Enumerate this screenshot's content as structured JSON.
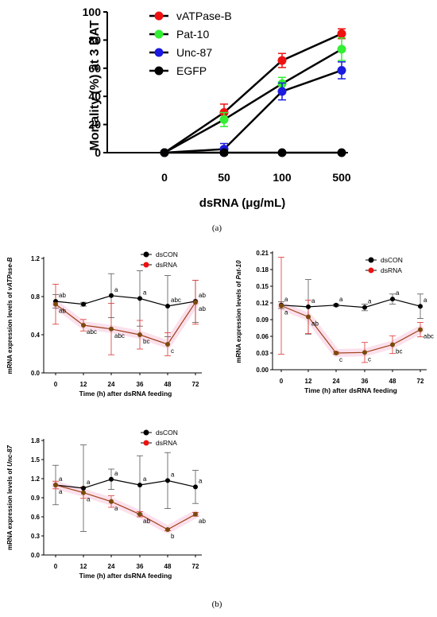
{
  "captions": {
    "a": "(a)",
    "b": "(b)"
  },
  "chart_data": [
    {
      "id": "mortality",
      "type": "line",
      "xlabel": "dsRNA (μg/mL)",
      "ylabel": "Mortality (%) at 3 DAT",
      "x": [
        "0",
        "50",
        "100",
        "500"
      ],
      "ylim": [
        0,
        100
      ],
      "yticks": [
        0,
        20,
        40,
        60,
        80,
        100
      ],
      "legend_position": "top-right",
      "series": [
        {
          "name": "vATPase-B",
          "color": "#ee1111",
          "values": [
            0,
            28.5,
            65.5,
            84.5
          ],
          "err": [
            0,
            6,
            5,
            3.5
          ]
        },
        {
          "name": "Pat-10",
          "color": "#33ee33",
          "values": [
            0,
            23.5,
            49,
            73.5
          ],
          "err": [
            0,
            5,
            4.5,
            8
          ]
        },
        {
          "name": "Unc-87",
          "color": "#1a1ae0",
          "values": [
            0,
            2.5,
            43.5,
            58.5
          ],
          "err": [
            0,
            4,
            6,
            6
          ]
        },
        {
          "name": "EGFP",
          "color": "#000000",
          "values": [
            0,
            0,
            0,
            0
          ],
          "err": [
            0,
            0,
            0,
            0
          ]
        }
      ]
    },
    {
      "id": "vatpase",
      "type": "line",
      "xlabel": "Time (h) after dsRNA feeding",
      "ylabel_prefix": "mRNA expression levels of ",
      "ylabel_gene": "vATPase-B",
      "x": [
        "0",
        "12",
        "24",
        "36",
        "48",
        "72"
      ],
      "ylim": [
        0,
        1.2
      ],
      "yticks": [
        "0.0",
        "0.4",
        "0.8",
        "1.2"
      ],
      "legend_position": "top-right",
      "series": [
        {
          "name": "dsCON",
          "color": "#000000",
          "values": [
            0.75,
            0.72,
            0.81,
            0.78,
            0.7,
            0.75
          ],
          "err": [
            0.07,
            0.02,
            0.23,
            0.29,
            0.32,
            0.22
          ],
          "labels": [
            "ab",
            "",
            "a",
            "a",
            "abc",
            "ab"
          ]
        },
        {
          "name": "dsRNA",
          "color": "#7a4a0c",
          "values": [
            0.72,
            0.5,
            0.46,
            0.4,
            0.3,
            0.74
          ],
          "err": [
            0.21,
            0.06,
            0.27,
            0.15,
            0.12,
            0.23
          ],
          "labels": [
            "ab",
            "abc",
            "abc",
            "bc",
            "c",
            "ab"
          ]
        }
      ]
    },
    {
      "id": "pat10",
      "type": "line",
      "xlabel": "Time (h) after dsRNA feeding",
      "ylabel_prefix": "mRNA expression levels of ",
      "ylabel_gene": "Pat-10",
      "x": [
        "0",
        "12",
        "24",
        "36",
        "48",
        "72"
      ],
      "ylim": [
        0,
        0.21
      ],
      "yticks": [
        "0.00",
        "0.03",
        "0.06",
        "0.09",
        "0.12",
        "0.15",
        "0.18",
        "0.21"
      ],
      "legend_position": "top-right",
      "series": [
        {
          "name": "dsCON",
          "color": "#000000",
          "values": [
            0.116,
            0.113,
            0.116,
            0.112,
            0.127,
            0.114
          ],
          "err": [
            0.006,
            0.049,
            0.002,
            0.006,
            0.009,
            0.022
          ],
          "labels": [
            "a",
            "a",
            "a",
            "a",
            "a",
            "a"
          ]
        },
        {
          "name": "dsRNA",
          "color": "#7a4a0c",
          "values": [
            0.115,
            0.095,
            0.03,
            0.031,
            0.045,
            0.072
          ],
          "err": [
            0.087,
            0.03,
            0.002,
            0.018,
            0.016,
            0.013
          ],
          "labels": [
            "a",
            "ab",
            "c",
            "c",
            "bc",
            "abc"
          ]
        }
      ]
    },
    {
      "id": "unc87",
      "type": "line",
      "xlabel": "Time (h) after dsRNA feeding",
      "ylabel_prefix": "mRNA expression levels of ",
      "ylabel_gene": "Unc-87",
      "x": [
        "0",
        "12",
        "24",
        "36",
        "48",
        "72"
      ],
      "ylim": [
        0,
        1.8
      ],
      "yticks": [
        "0.0",
        "0.3",
        "0.6",
        "0.9",
        "1.2",
        "1.5",
        "1.8"
      ],
      "legend_position": "top-right",
      "series": [
        {
          "name": "dsCON",
          "color": "#000000",
          "values": [
            1.1,
            1.05,
            1.19,
            1.1,
            1.17,
            1.07
          ],
          "err": [
            0.31,
            0.68,
            0.16,
            0.46,
            0.44,
            0.26
          ],
          "labels": [
            "a",
            "a",
            "a",
            "a",
            "a",
            "a"
          ]
        },
        {
          "name": "dsRNA",
          "color": "#7a4a0c",
          "values": [
            1.1,
            0.98,
            0.84,
            0.64,
            0.4,
            0.64
          ],
          "err": [
            0.06,
            0.09,
            0.09,
            0.04,
            0.02,
            0.03
          ],
          "labels": [
            "a",
            "a",
            "a",
            "ab",
            "b",
            "ab"
          ]
        }
      ]
    }
  ]
}
